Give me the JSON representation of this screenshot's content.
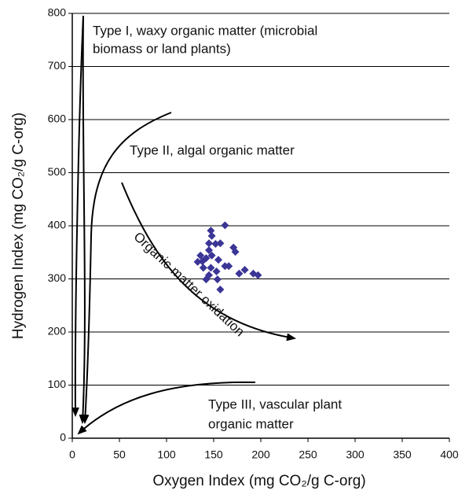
{
  "chart_data": {
    "type": "scatter",
    "xlabel": "Oxygen Index (mg CO₂/g C-org)",
    "ylabel": "Hydrogen Index (mg CO₂/g C-org)",
    "xlim": [
      0,
      400
    ],
    "ylim": [
      0,
      800
    ],
    "xticks": [
      0,
      50,
      100,
      150,
      200,
      250,
      300,
      350,
      400
    ],
    "yticks": [
      0,
      100,
      200,
      300,
      400,
      500,
      600,
      700,
      800
    ],
    "grid": true,
    "color": "#3b3596",
    "x": [
      162,
      147,
      148,
      157,
      171,
      173,
      145,
      136,
      142,
      148,
      155,
      139,
      147,
      153,
      162,
      145,
      154,
      157,
      177,
      183,
      192,
      197,
      138,
      133,
      142,
      166,
      145,
      152
    ],
    "y": [
      401,
      391,
      381,
      367,
      359,
      351,
      367,
      344,
      339,
      344,
      336,
      321,
      321,
      314,
      324,
      307,
      299,
      280,
      310,
      317,
      310,
      307,
      333,
      332,
      299,
      324,
      354,
      366
    ],
    "annotations": [
      "Type I, waxy organic matter (microbial",
      "biomass or land plants)",
      "Type II, algal organic matter",
      "Organic matter oxidation",
      "Type III, vascular plant",
      "organic matter"
    ]
  }
}
